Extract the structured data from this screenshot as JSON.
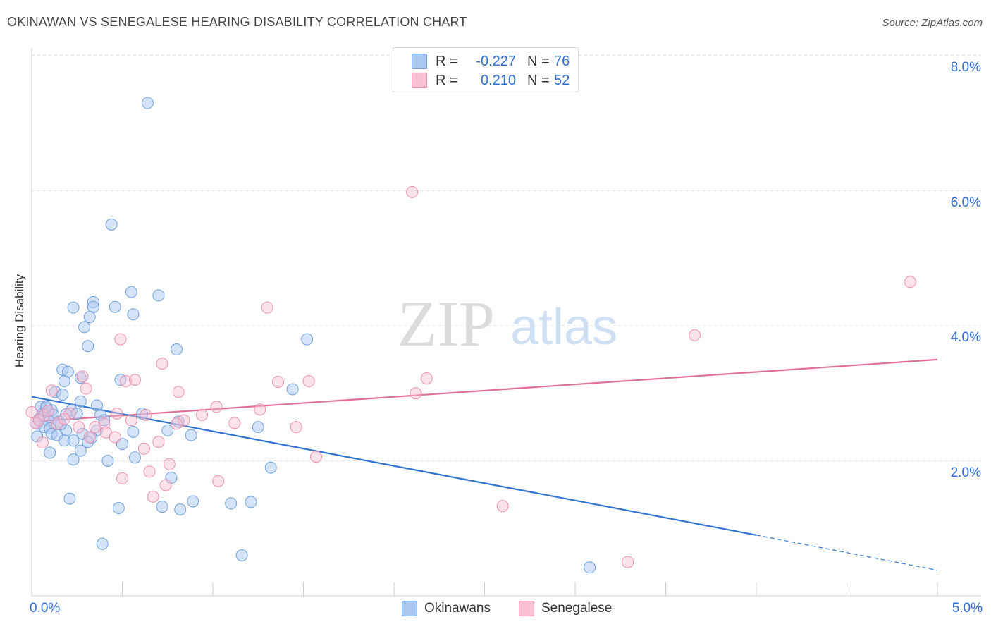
{
  "title": "OKINAWAN VS SENEGALESE HEARING DISABILITY CORRELATION CHART",
  "source": "Source: ZipAtlas.com",
  "watermark": {
    "zip": "ZIP",
    "atlas": "atlas"
  },
  "colors": {
    "okinawan_fill": "#aac8f0",
    "okinawan_stroke": "#6fa0dd",
    "okinawan_line": "#2f74d0",
    "senegalese_fill": "#f8c0d2",
    "senegalese_stroke": "#ee8fae",
    "senegalese_line": "#e07099",
    "tick_text": "#2f6fd1"
  },
  "legend": {
    "rows": [
      {
        "r_label": "R =",
        "r_value": "-0.227",
        "n_label": "N =",
        "n_value": "76"
      },
      {
        "r_label": "R =",
        "r_value": "0.210",
        "n_label": "N =",
        "n_value": "52"
      }
    ]
  },
  "bottom_legend": [
    "Okinawans",
    "Senegalese"
  ],
  "x_tick_left": "0.0%",
  "x_tick_right": "5.0%",
  "y_ticks": [
    "8.0%",
    "6.0%",
    "4.0%",
    "2.0%"
  ],
  "chart_data": {
    "type": "scatter",
    "title": "OKINAWAN VS SENEGALESE HEARING DISABILITY CORRELATION CHART",
    "xlabel": "",
    "ylabel": "Hearing Disability",
    "xlim": [
      0,
      5
    ],
    "ylim": [
      0,
      8.3
    ],
    "y_ticks": [
      2,
      4,
      6,
      8
    ],
    "series": [
      {
        "name": "Okinawans",
        "r": -0.227,
        "n": 76,
        "trend": {
          "x0": 0,
          "y0": 2.95,
          "x1": 4.0,
          "y1": 0.9,
          "dashed_to_x": 5.0,
          "dashed_to_y": 0.38
        },
        "points": [
          [
            0.64,
            7.3
          ],
          [
            0.44,
            5.5
          ],
          [
            0.55,
            4.5
          ],
          [
            0.7,
            4.45
          ],
          [
            0.34,
            4.35
          ],
          [
            0.23,
            4.27
          ],
          [
            0.34,
            4.28
          ],
          [
            0.46,
            4.28
          ],
          [
            0.56,
            4.17
          ],
          [
            0.32,
            4.13
          ],
          [
            0.29,
            3.98
          ],
          [
            0.31,
            3.7
          ],
          [
            0.8,
            3.65
          ],
          [
            1.52,
            3.8
          ],
          [
            0.17,
            3.35
          ],
          [
            0.2,
            3.32
          ],
          [
            0.27,
            3.23
          ],
          [
            0.18,
            3.18
          ],
          [
            0.49,
            3.2
          ],
          [
            1.44,
            3.06
          ],
          [
            0.13,
            3.02
          ],
          [
            0.17,
            2.98
          ],
          [
            0.05,
            2.8
          ],
          [
            0.08,
            2.78
          ],
          [
            0.11,
            2.75
          ],
          [
            0.22,
            2.75
          ],
          [
            0.06,
            2.7
          ],
          [
            0.12,
            2.68
          ],
          [
            0.19,
            2.69
          ],
          [
            0.04,
            2.62
          ],
          [
            0.09,
            2.6
          ],
          [
            0.15,
            2.58
          ],
          [
            0.27,
            2.88
          ],
          [
            0.36,
            2.82
          ],
          [
            0.25,
            2.7
          ],
          [
            0.38,
            2.68
          ],
          [
            0.4,
            2.6
          ],
          [
            0.81,
            2.58
          ],
          [
            0.03,
            2.55
          ],
          [
            0.07,
            2.5
          ],
          [
            0.1,
            2.48
          ],
          [
            0.19,
            2.45
          ],
          [
            0.36,
            2.45
          ],
          [
            0.56,
            2.43
          ],
          [
            0.75,
            2.45
          ],
          [
            1.25,
            2.5
          ],
          [
            0.11,
            2.4
          ],
          [
            0.14,
            2.38
          ],
          [
            0.28,
            2.4
          ],
          [
            0.03,
            2.36
          ],
          [
            0.18,
            2.3
          ],
          [
            0.23,
            2.3
          ],
          [
            0.33,
            2.34
          ],
          [
            0.5,
            2.25
          ],
          [
            0.88,
            2.38
          ],
          [
            0.1,
            2.12
          ],
          [
            0.27,
            2.15
          ],
          [
            0.23,
            2.02
          ],
          [
            0.42,
            2.0
          ],
          [
            0.57,
            2.05
          ],
          [
            1.32,
            1.9
          ],
          [
            0.77,
            1.75
          ],
          [
            0.21,
            1.44
          ],
          [
            0.48,
            1.3
          ],
          [
            0.72,
            1.32
          ],
          [
            0.82,
            1.28
          ],
          [
            0.89,
            1.4
          ],
          [
            1.1,
            1.37
          ],
          [
            1.21,
            1.39
          ],
          [
            0.39,
            0.77
          ],
          [
            1.16,
            0.6
          ],
          [
            3.08,
            0.42
          ],
          [
            0.08,
            2.8
          ],
          [
            0.16,
            2.54
          ],
          [
            0.31,
            2.28
          ],
          [
            0.61,
            2.7
          ]
        ]
      },
      {
        "name": "Senegalese",
        "r": 0.21,
        "n": 52,
        "trend": {
          "x0": 0,
          "y0": 2.58,
          "x1": 5.0,
          "y1": 3.5
        },
        "points": [
          [
            2.1,
            5.98
          ],
          [
            4.85,
            4.65
          ],
          [
            1.3,
            4.27
          ],
          [
            3.66,
            3.86
          ],
          [
            0.49,
            3.8
          ],
          [
            0.72,
            3.44
          ],
          [
            2.18,
            3.22
          ],
          [
            1.36,
            3.17
          ],
          [
            1.53,
            3.18
          ],
          [
            0.52,
            3.18
          ],
          [
            0.57,
            3.2
          ],
          [
            0.28,
            3.25
          ],
          [
            0.11,
            3.04
          ],
          [
            0.3,
            3.07
          ],
          [
            0.81,
            3.02
          ],
          [
            2.12,
            3.0
          ],
          [
            1.02,
            2.8
          ],
          [
            1.26,
            2.76
          ],
          [
            0.47,
            2.7
          ],
          [
            0.63,
            2.68
          ],
          [
            0.94,
            2.68
          ],
          [
            0.0,
            2.72
          ],
          [
            0.07,
            2.68
          ],
          [
            0.21,
            2.7
          ],
          [
            0.84,
            2.6
          ],
          [
            1.12,
            2.56
          ],
          [
            0.02,
            2.56
          ],
          [
            0.14,
            2.55
          ],
          [
            0.4,
            2.55
          ],
          [
            0.8,
            2.55
          ],
          [
            1.46,
            2.5
          ],
          [
            0.26,
            2.5
          ],
          [
            0.35,
            2.5
          ],
          [
            0.41,
            2.42
          ],
          [
            0.46,
            2.35
          ],
          [
            0.7,
            2.28
          ],
          [
            0.06,
            2.27
          ],
          [
            0.62,
            2.18
          ],
          [
            1.57,
            2.06
          ],
          [
            0.76,
            1.95
          ],
          [
            0.65,
            1.84
          ],
          [
            1.03,
            1.7
          ],
          [
            0.5,
            1.74
          ],
          [
            0.74,
            1.64
          ],
          [
            0.67,
            1.47
          ],
          [
            2.6,
            1.33
          ],
          [
            3.29,
            0.5
          ],
          [
            0.04,
            2.6
          ],
          [
            0.09,
            2.74
          ],
          [
            0.18,
            2.62
          ],
          [
            0.32,
            2.35
          ],
          [
            0.55,
            2.6
          ]
        ]
      }
    ]
  }
}
